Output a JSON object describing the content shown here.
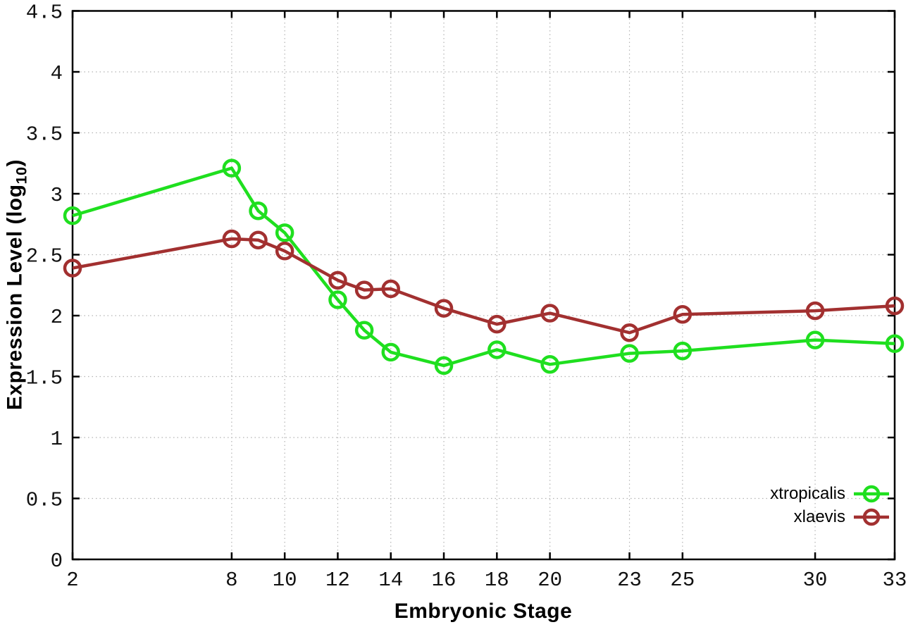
{
  "chart_data": {
    "type": "line",
    "xlabel": "Embryonic Stage",
    "ylabel_prefix": "Expression Level (log",
    "ylabel_sub": "10",
    "ylabel_suffix": ")",
    "x": [
      2,
      8,
      9,
      10,
      12,
      13,
      14,
      16,
      18,
      20,
      23,
      25,
      30,
      33
    ],
    "series": [
      {
        "name": "xtropicalis",
        "color": "#1fdf1f",
        "values": [
          2.82,
          3.21,
          2.86,
          2.68,
          2.13,
          1.88,
          1.7,
          1.59,
          1.72,
          1.6,
          1.69,
          1.71,
          1.8,
          1.77
        ]
      },
      {
        "name": "xlaevis",
        "color": "#a23030",
        "values": [
          2.39,
          2.63,
          2.62,
          2.53,
          2.29,
          2.21,
          2.22,
          2.06,
          1.93,
          2.02,
          1.86,
          2.01,
          2.04,
          2.08
        ]
      }
    ],
    "xlim": [
      2,
      33
    ],
    "ylim": [
      0,
      4.5
    ],
    "x_ticks": [
      2,
      8,
      10,
      12,
      14,
      16,
      18,
      20,
      23,
      25,
      30,
      33
    ],
    "y_ticks": [
      0,
      0.5,
      1,
      1.5,
      2,
      2.5,
      3,
      3.5,
      4,
      4.5
    ],
    "y_tick_labels": [
      "0",
      "0.5",
      "1",
      "1.5",
      "2",
      "2.5",
      "3",
      "3.5",
      "4",
      "4.5"
    ],
    "grid": true,
    "legend_position": "bottom-right",
    "marker": "open-circle",
    "line_width": 4.5,
    "marker_radius": 11,
    "grid_color": "#b3b3b3",
    "axis_color": "#000000",
    "tick_label_color": "#111111"
  }
}
